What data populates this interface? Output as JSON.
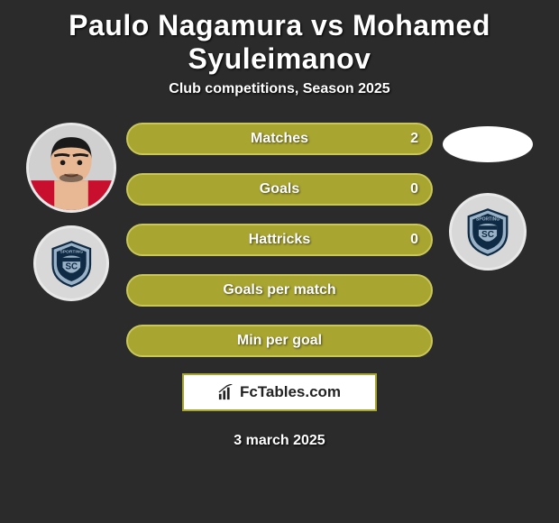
{
  "title": "Paulo Nagamura vs Mohamed Syuleimanov",
  "subtitle": "Club competitions, Season 2025",
  "date": "3 march 2025",
  "brand": "FcTables.com",
  "colors": {
    "bar_fill": "#a8a531",
    "bar_border": "#c9c75a",
    "background": "#2b2b2b",
    "shield_outer": "#9ab2c7",
    "shield_inner": "#0f2a44",
    "shield_stripe": "#8fa7bc"
  },
  "stats": [
    {
      "label": "Matches",
      "value": "2"
    },
    {
      "label": "Goals",
      "value": "0"
    },
    {
      "label": "Hattricks",
      "value": "0"
    },
    {
      "label": "Goals per match",
      "value": ""
    },
    {
      "label": "Min per goal",
      "value": ""
    }
  ]
}
